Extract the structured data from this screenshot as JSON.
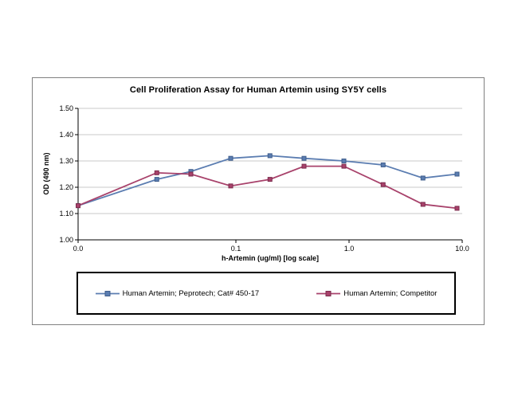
{
  "chart_data": {
    "type": "line",
    "title": "Cell Proliferation Assay for Human Artemin using SY5Y cells",
    "xlabel": "h-Artemin  (ug/ml) [log scale]",
    "ylabel": "OD (490 nm)",
    "x_scale": "log",
    "grid": "horizontal",
    "legend_position": "bottom-box",
    "ylim": [
      1.0,
      1.5
    ],
    "y_ticks": [
      "1.00",
      "1.10",
      "1.20",
      "1.30",
      "1.40",
      "1.50"
    ],
    "x_tick_values": [
      0,
      0.1,
      1,
      10
    ],
    "x_tick_labels": [
      "0.0",
      "0.1",
      "1.0",
      "10.0"
    ],
    "x": [
      0,
      0.02,
      0.04,
      0.09,
      0.2,
      0.4,
      0.9,
      2,
      4.5,
      9
    ],
    "series": [
      {
        "name": "Human Artemin; Peprotech; Cat# 450-17",
        "color": "#5b7db1",
        "border": "#3f5e8c",
        "values": [
          1.13,
          1.23,
          1.26,
          1.31,
          1.32,
          1.31,
          1.3,
          1.285,
          1.235,
          1.25
        ]
      },
      {
        "name": "Human Artemin; Competitor",
        "color": "#a8426b",
        "border": "#7c2c4d",
        "values": [
          1.13,
          1.255,
          1.25,
          1.205,
          1.23,
          1.28,
          1.28,
          1.21,
          1.135,
          1.12
        ]
      }
    ]
  }
}
